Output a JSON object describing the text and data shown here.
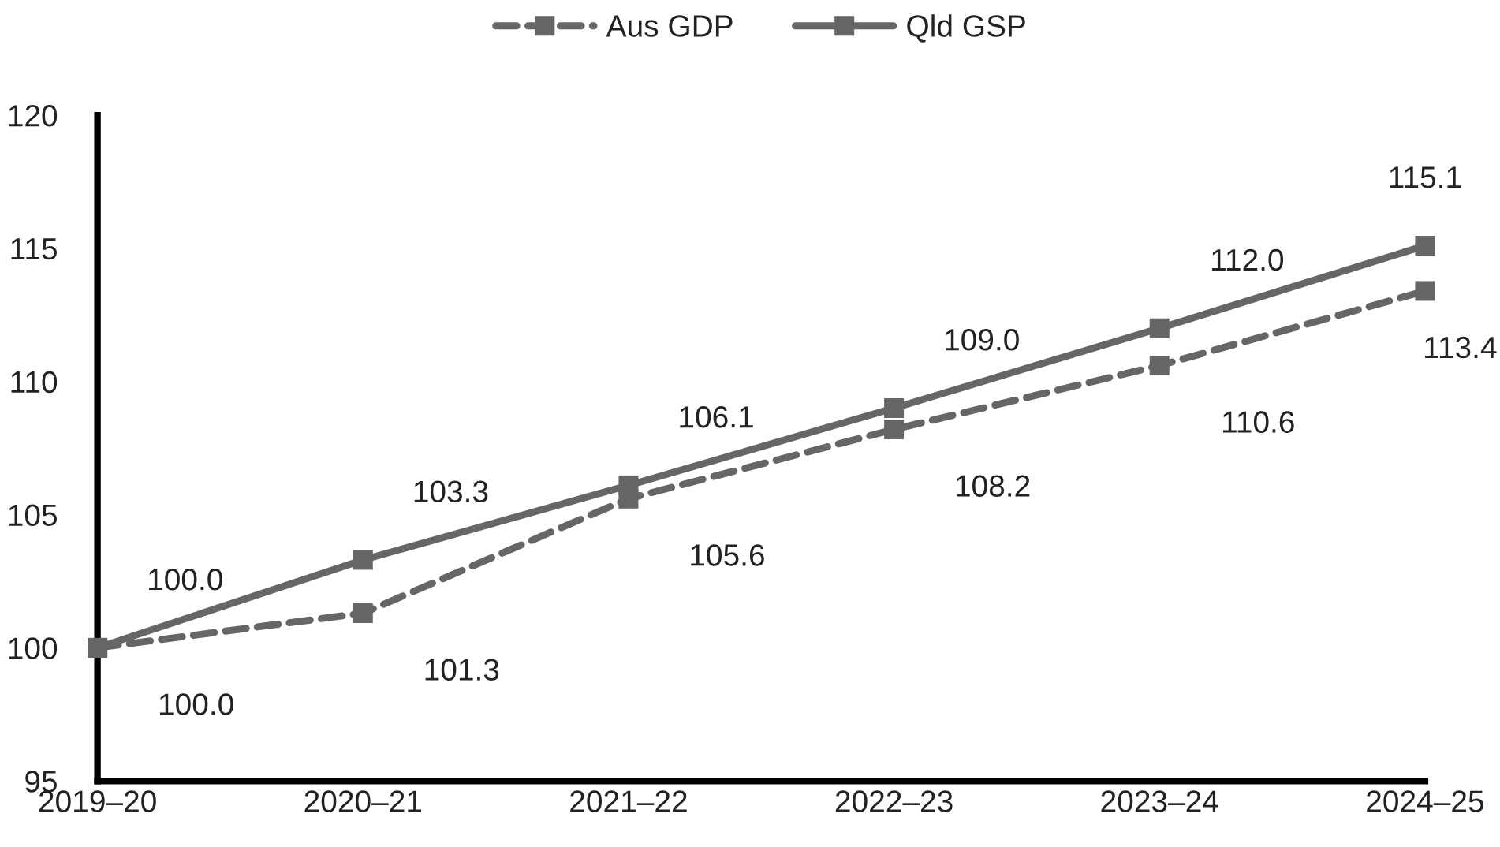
{
  "chart_data": {
    "type": "line",
    "categories": [
      "2019–20",
      "2020–21",
      "2021–22",
      "2022–23",
      "2023–24",
      "2024–25"
    ],
    "series": [
      {
        "name": "Aus GDP",
        "color": "#666666",
        "line_style": "dashed",
        "values": [
          100.0,
          101.3,
          105.6,
          108.2,
          110.6,
          113.4
        ],
        "value_labels": [
          "100.0",
          "101.3",
          "105.6",
          "108.2",
          "110.6",
          "113.4"
        ]
      },
      {
        "name": "Qld GSP",
        "color": "#666666",
        "line_style": "solid",
        "values": [
          100.0,
          103.3,
          106.1,
          109.0,
          112.0,
          115.1
        ],
        "value_labels": [
          "100.0",
          "103.3",
          "106.1",
          "109.0",
          "112.0",
          "115.1"
        ]
      }
    ],
    "ylim": [
      95,
      120
    ],
    "yticks": [
      95,
      100,
      105,
      110,
      115,
      120
    ],
    "marker": "square",
    "legend": "top"
  }
}
